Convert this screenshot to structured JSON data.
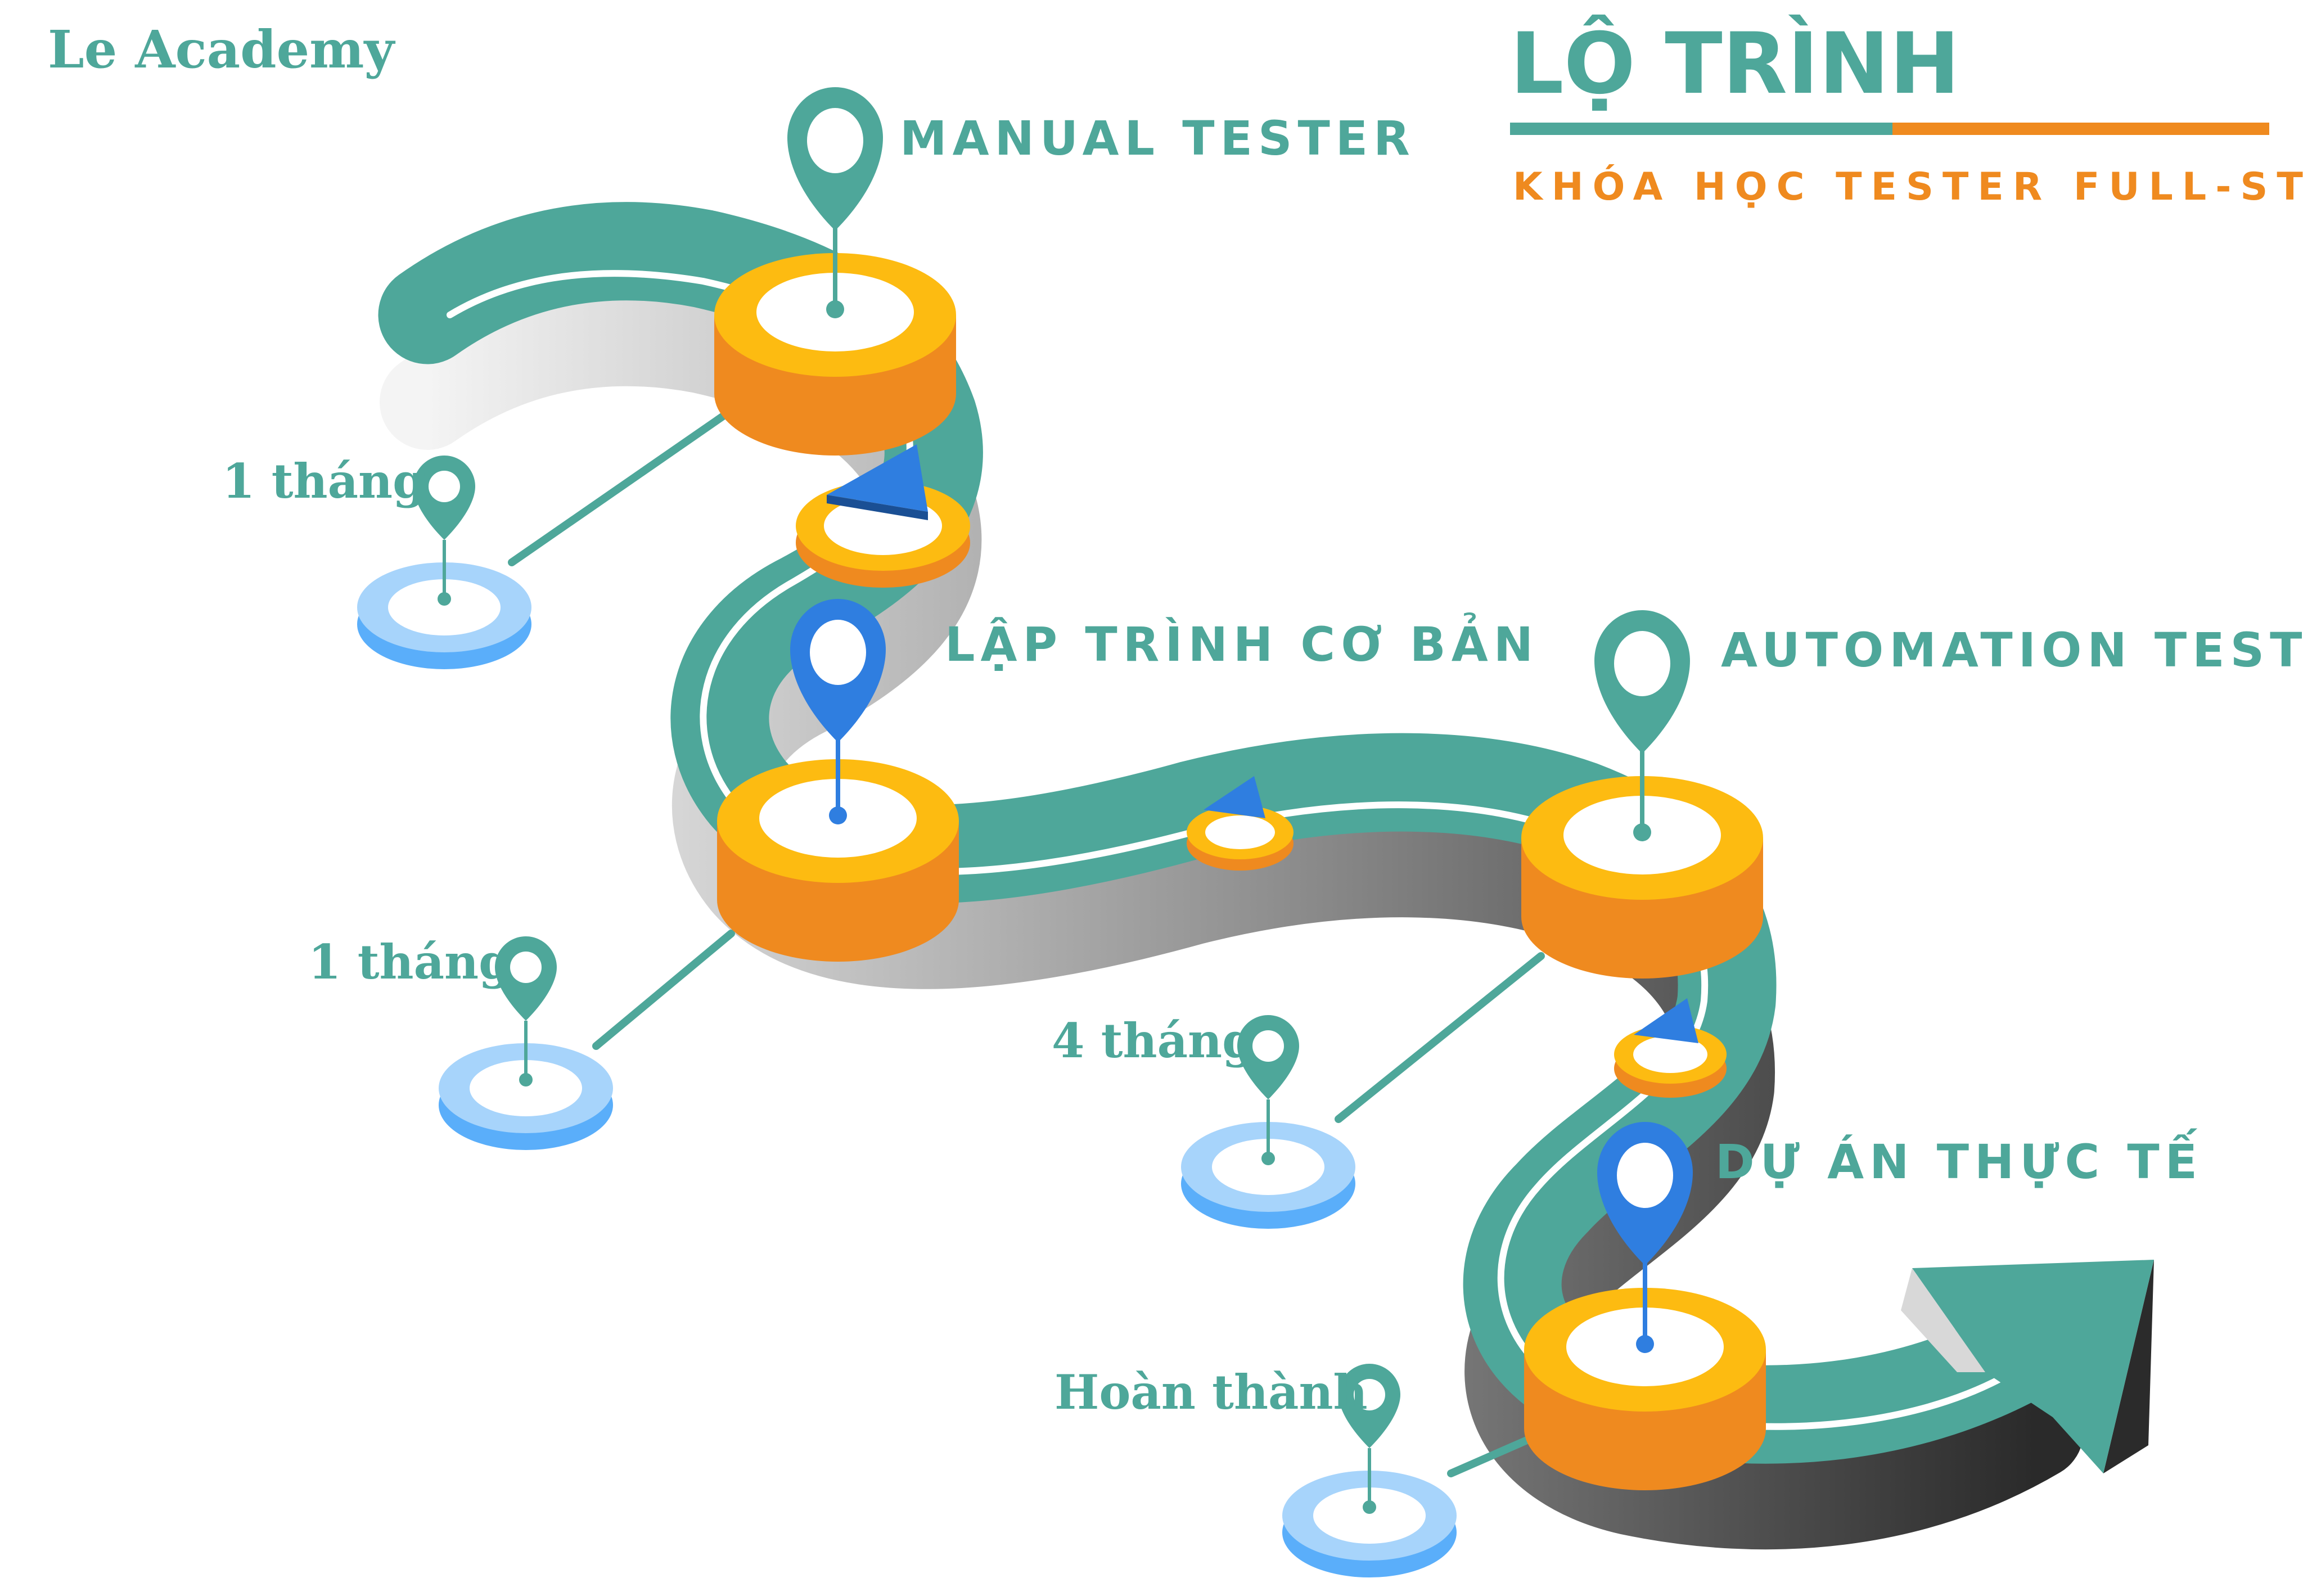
{
  "brand": {
    "name": "Le Academy"
  },
  "header": {
    "title": "LỘ TRÌNH",
    "subtitle": "KHÓA HỌC TESTER FULL-STACK"
  },
  "colors": {
    "teal": "#4ea79a",
    "orange": "#ef8a1f",
    "yellow": "#fdbb11",
    "blue": "#2f7ee0",
    "light_blue": "#a7d4fb"
  },
  "stages": [
    {
      "label": "MANUAL TESTER",
      "pin_icon": "teal-pin-icon"
    },
    {
      "label": "LẬP TRÌNH CƠ BẢN",
      "pin_icon": "blue-pin-icon"
    },
    {
      "label": "AUTOMATION TESTER",
      "pin_icon": "teal-pin-icon"
    },
    {
      "label": "DỰ ÁN THỰC TẾ",
      "pin_icon": "blue-pin-icon"
    }
  ],
  "durations": [
    {
      "label": "1 tháng"
    },
    {
      "label": "1 tháng"
    },
    {
      "label": "4 tháng"
    },
    {
      "label": "Hoàn thành"
    }
  ]
}
